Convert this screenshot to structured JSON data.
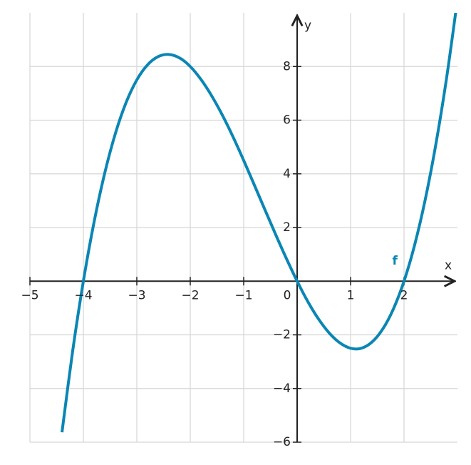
{
  "chart_data": {
    "type": "line",
    "x_label": "x",
    "y_label": "y",
    "xlim": [
      -5,
      3
    ],
    "ylim": [
      -6,
      10
    ],
    "xticks": [
      {
        "value": -5,
        "label": "−5"
      },
      {
        "value": -4,
        "label": "−4"
      },
      {
        "value": -3,
        "label": "−3"
      },
      {
        "value": -2,
        "label": "−2"
      },
      {
        "value": -1,
        "label": "−1"
      },
      0,
      1,
      2
    ],
    "yticks": [
      {
        "value": -6,
        "label": "−6"
      },
      {
        "value": -4,
        "label": "−4"
      },
      {
        "value": -2,
        "label": "−2"
      },
      2,
      4,
      6,
      8
    ],
    "grid": true,
    "x": [
      -4.4,
      -4.2,
      -4.0,
      -3.8,
      -3.6,
      -3.4,
      -3.2,
      -3.0,
      -2.8,
      -2.6,
      -2.4,
      -2.2,
      -2.0,
      -1.8,
      -1.6,
      -1.4,
      -1.2,
      -1.0,
      -0.8,
      -0.6,
      -0.4,
      -0.2,
      0,
      0.2,
      0.4,
      0.6,
      0.8,
      1.0,
      1.2,
      1.4,
      1.6,
      1.8,
      2.0,
      2.2,
      2.4,
      2.6,
      2.8,
      3.0
    ],
    "series": [
      {
        "name": "f",
        "color": "#0a86b4",
        "values": [
          -5.63,
          -2.6,
          0,
          2.2,
          4.03,
          5.51,
          6.66,
          7.5,
          8.06,
          8.37,
          8.45,
          8.32,
          8,
          7.52,
          6.91,
          6.19,
          5.38,
          4.5,
          3.58,
          2.65,
          1.73,
          0.84,
          0,
          -0.76,
          -1.41,
          -1.93,
          -2.3,
          -2.5,
          -2.5,
          -2.27,
          -1.79,
          -1.04,
          0,
          1.36,
          3.07,
          5.15,
          7.62,
          10.5
        ]
      }
    ]
  }
}
